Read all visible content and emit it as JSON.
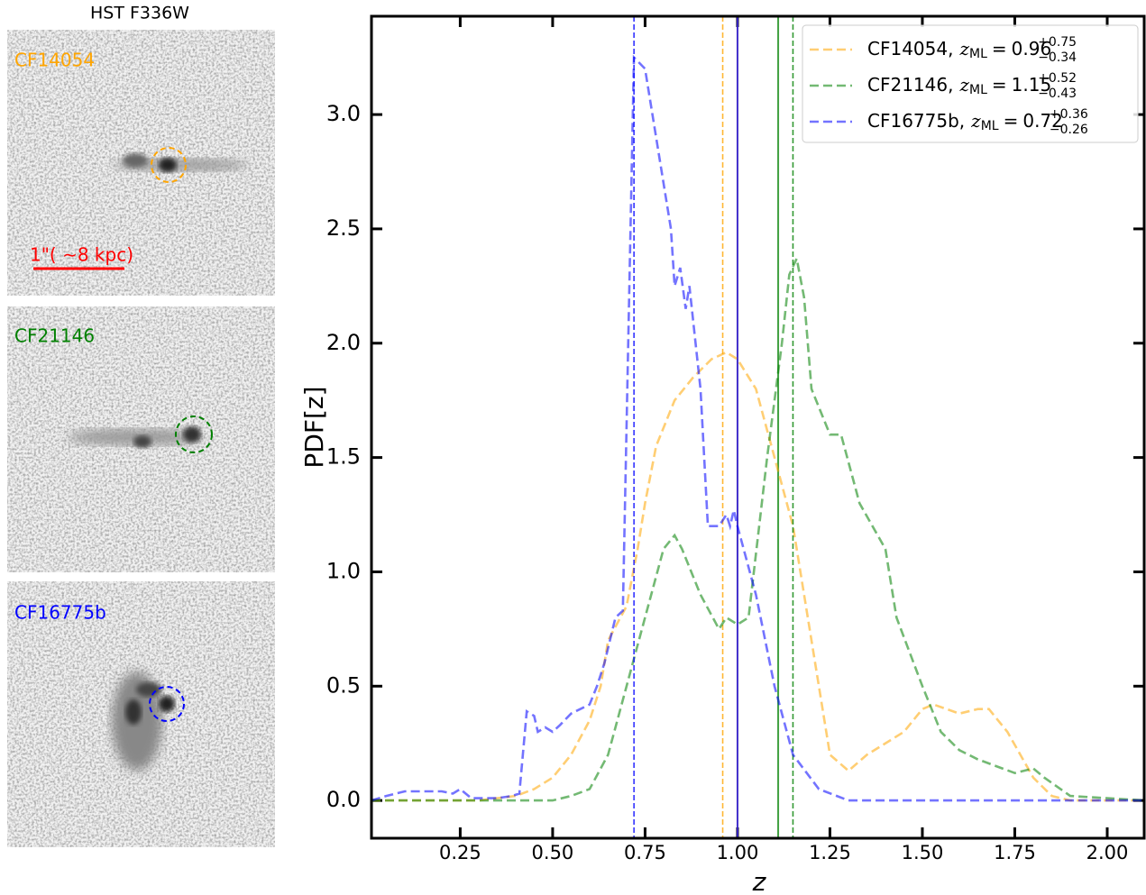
{
  "image_panels": {
    "title": "HST F336W",
    "scale_bar": "1\"( ∼8 kpc)",
    "panels": [
      {
        "label": "CF14054",
        "color": "#ffa500"
      },
      {
        "label": "CF21146",
        "color": "#008000"
      },
      {
        "label": "CF16775b",
        "color": "#0000ff"
      }
    ]
  },
  "chart_data": {
    "type": "line",
    "xlabel": "z",
    "ylabel": "PDF[z]",
    "xlim": [
      0.01,
      2.1
    ],
    "ylim": [
      -0.165,
      3.43
    ],
    "xticks": [
      0.25,
      {
        "value": 0.5,
        "label": "0.50"
      },
      0.75,
      {
        "value": 1.0,
        "label": "1.00"
      },
      1.25,
      {
        "value": 1.5,
        "label": "1.50"
      },
      1.75,
      {
        "value": 2.0,
        "label": "2.00"
      }
    ],
    "yticks": [
      {
        "value": 0,
        "label": "0.0"
      },
      0.5,
      {
        "value": 1,
        "label": "1.0"
      },
      1.5,
      {
        "value": 2,
        "label": "2.0"
      },
      2.5,
      {
        "value": 3,
        "label": "3.0"
      }
    ],
    "legend": "upper right",
    "legend_separator": ",",
    "z_ml_symbol": "z",
    "z_ml_subscript": "ML",
    "legend_equals": "=",
    "series": [
      {
        "name": "CF14054",
        "color": "#ffa500",
        "z_ml": 0.96,
        "z_ml_plus": "+0.75",
        "z_ml_minus": "−0.34",
        "x": [
          0.01,
          0.3,
          0.4,
          0.45,
          0.5,
          0.55,
          0.6,
          0.63,
          0.65,
          0.7,
          0.73,
          0.75,
          0.78,
          0.83,
          0.88,
          0.93,
          0.97,
          1.0,
          1.05,
          1.1,
          1.15,
          1.18,
          1.22,
          1.25,
          1.3,
          1.35,
          1.45,
          1.5,
          1.53,
          1.6,
          1.65,
          1.68,
          1.73,
          1.8,
          1.85,
          1.9,
          2.1
        ],
        "values": [
          0,
          0,
          0.02,
          0.05,
          0.1,
          0.2,
          0.35,
          0.5,
          0.7,
          0.85,
          1.1,
          1.3,
          1.55,
          1.75,
          1.85,
          1.93,
          1.96,
          1.93,
          1.8,
          1.5,
          1.2,
          0.9,
          0.5,
          0.2,
          0.13,
          0.2,
          0.3,
          0.4,
          0.42,
          0.38,
          0.4,
          0.4,
          0.3,
          0.1,
          0.02,
          0,
          0
        ]
      },
      {
        "name": "CF21146",
        "color": "#008000",
        "z_ml": 1.15,
        "z_ml_plus": "+0.52",
        "z_ml_minus": "−0.43",
        "x": [
          0.01,
          0.5,
          0.55,
          0.6,
          0.65,
          0.7,
          0.75,
          0.8,
          0.83,
          0.85,
          0.9,
          0.95,
          0.97,
          1.0,
          1.03,
          1.08,
          1.12,
          1.14,
          1.16,
          1.18,
          1.2,
          1.25,
          1.28,
          1.33,
          1.4,
          1.43,
          1.5,
          1.55,
          1.6,
          1.65,
          1.7,
          1.75,
          1.8,
          1.83,
          1.9,
          2.1
        ],
        "values": [
          0,
          0,
          0.02,
          0.05,
          0.2,
          0.5,
          0.8,
          1.1,
          1.16,
          1.1,
          0.9,
          0.75,
          0.8,
          0.77,
          0.8,
          1.5,
          2.0,
          2.3,
          2.37,
          2.2,
          1.8,
          1.6,
          1.6,
          1.3,
          1.1,
          0.8,
          0.5,
          0.3,
          0.22,
          0.18,
          0.15,
          0.12,
          0.14,
          0.1,
          0.02,
          0
        ]
      },
      {
        "name": "CF16775b",
        "color": "#0000ff",
        "z_ml": 0.72,
        "z_ml_plus": "+0.36",
        "z_ml_minus": "−0.26",
        "x": [
          0.01,
          0.05,
          0.1,
          0.15,
          0.2,
          0.23,
          0.25,
          0.28,
          0.35,
          0.39,
          0.41,
          0.43,
          0.45,
          0.46,
          0.48,
          0.5,
          0.52,
          0.55,
          0.6,
          0.62,
          0.64,
          0.67,
          0.69,
          0.72,
          0.75,
          0.77,
          0.8,
          0.82,
          0.83,
          0.845,
          0.86,
          0.87,
          0.9,
          0.92,
          0.95,
          0.97,
          0.98,
          0.99,
          1.0,
          1.05,
          1.1,
          1.15,
          1.22,
          1.3,
          1.5,
          2.1
        ],
        "values": [
          0,
          0.02,
          0.04,
          0.04,
          0.04,
          0.03,
          0.05,
          0.01,
          0.01,
          0.02,
          0.03,
          0.39,
          0.37,
          0.3,
          0.32,
          0.3,
          0.33,
          0.38,
          0.42,
          0.5,
          0.6,
          0.8,
          0.83,
          3.25,
          3.2,
          3.0,
          2.7,
          2.5,
          2.25,
          2.33,
          2.15,
          2.25,
          1.8,
          1.2,
          1.2,
          1.25,
          1.2,
          1.27,
          1.2,
          0.9,
          0.5,
          0.2,
          0.05,
          0,
          0,
          0
        ]
      }
    ],
    "ref_lines": [
      {
        "x": 1.0,
        "color": "#ffa500"
      },
      {
        "x": 1.11,
        "color": "#008000"
      },
      {
        "x": 1.0,
        "color": "#0000ff"
      }
    ]
  }
}
